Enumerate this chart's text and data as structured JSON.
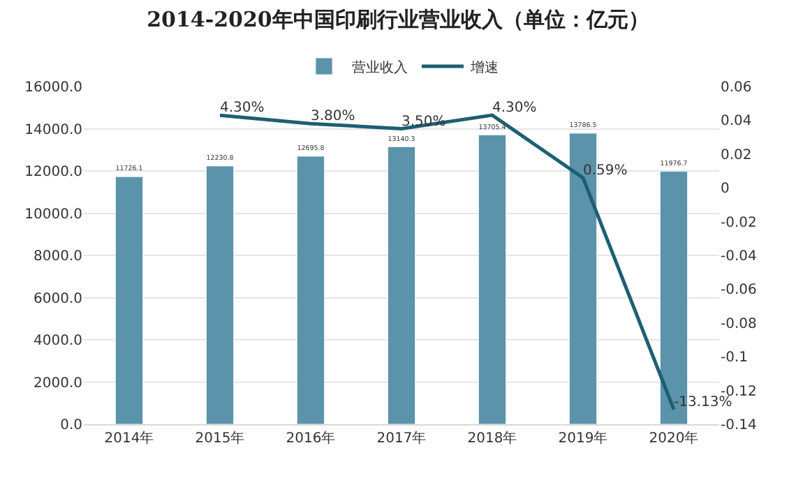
{
  "chart_data": {
    "type": "bar",
    "title": "2014-2020年中国印刷行业营业收入（单位：亿元）",
    "categories": [
      "2014年",
      "2015年",
      "2016年",
      "2017年",
      "2018年",
      "2019年",
      "2020年"
    ],
    "series": [
      {
        "name": "营业收入",
        "color": "#5b93aa",
        "values": [
          11726.1,
          12230.8,
          12695.8,
          13140.3,
          13705.4,
          13786.5,
          11976.7
        ],
        "value_labels": [
          "11726.1",
          "12230.8",
          "12695.8",
          "13140.3",
          "13705.4",
          "13786.5",
          "11976.7"
        ]
      },
      {
        "name": "增速",
        "type": "line",
        "axis": "y2",
        "color": "#1d5f72",
        "values": [
          null,
          0.043,
          0.038,
          0.035,
          0.043,
          0.0059,
          -0.1313
        ],
        "value_labels": [
          null,
          "4.30%",
          "3.80%",
          "3.50%",
          "4.30%",
          "0.59%",
          "-13.13%"
        ]
      }
    ],
    "ylim": [
      0,
      16000
    ],
    "yticks": [
      {
        "value": 0,
        "label": "0.0"
      },
      {
        "value": 2000,
        "label": "2000.0"
      },
      {
        "value": 4000,
        "label": "4000.0"
      },
      {
        "value": 6000,
        "label": "6000.0"
      },
      {
        "value": 8000,
        "label": "8000.0"
      },
      {
        "value": 10000,
        "label": "10000.0"
      },
      {
        "value": 12000,
        "label": "12000.0"
      },
      {
        "value": 14000,
        "label": "14000.0"
      },
      {
        "value": 16000,
        "label": "16000.0"
      }
    ],
    "y2lim": [
      -0.14,
      0.06
    ],
    "y2ticks": [
      -0.14,
      -0.12,
      -0.1,
      -0.08,
      -0.06,
      -0.04,
      -0.02,
      0,
      0.02,
      0.04,
      0.06
    ],
    "grid": "y",
    "legend": "top",
    "marker": "none",
    "line_style": "solid"
  }
}
